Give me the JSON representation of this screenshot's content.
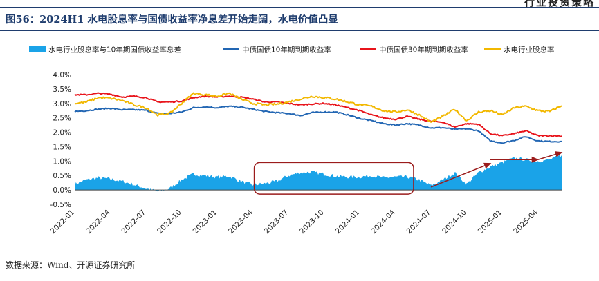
{
  "header": {
    "mark": "行业投资策略"
  },
  "figure": {
    "title": "图56：2024H1 水电股息率与国债收益率净息差开始走阔，水电价值凸显",
    "source": "数据来源：Wind、开源证券研究所"
  },
  "colors": {
    "spread": "#1aa3e8",
    "cgb10": "#2266b3",
    "cgb30": "#e8141b",
    "hydro": "#f2b800",
    "annotation": "#9b1c1c",
    "title": "#1f3d6e"
  },
  "chart_data": {
    "type": "line",
    "x_start": "2022-01",
    "x_end": "2025-06",
    "xlabels": [
      "2022-01",
      "2022-04",
      "2022-07",
      "2022-10",
      "2023-01",
      "2023-04",
      "2023-07",
      "2023-10",
      "2024-01",
      "2024-04",
      "2024-07",
      "2024-10",
      "2025-01",
      "2025-04"
    ],
    "ylabels": [
      "-0.5%",
      "0.0%",
      "0.5%",
      "1.0%",
      "1.5%",
      "2.0%",
      "2.5%",
      "3.0%",
      "3.5%",
      "4.0%"
    ],
    "ylim": [
      -0.5,
      4.0
    ],
    "grid": false,
    "legend_position": "top",
    "series": [
      {
        "name": "水电行业股息率与10年期国债收益率息差",
        "kind": "area",
        "points": [
          [
            "2022-01",
            0.2
          ],
          [
            "2022-02",
            0.35
          ],
          [
            "2022-03",
            0.42
          ],
          [
            "2022-04",
            0.38
          ],
          [
            "2022-05",
            0.3
          ],
          [
            "2022-06",
            0.18
          ],
          [
            "2022-07",
            0.05
          ],
          [
            "2022-08",
            -0.05
          ],
          [
            "2022-09",
            0.05
          ],
          [
            "2022-10",
            0.35
          ],
          [
            "2022-11",
            0.55
          ],
          [
            "2022-12",
            0.5
          ],
          [
            "2023-01",
            0.45
          ],
          [
            "2023-02",
            0.48
          ],
          [
            "2023-03",
            0.3
          ],
          [
            "2023-04",
            0.18
          ],
          [
            "2023-05",
            0.22
          ],
          [
            "2023-06",
            0.3
          ],
          [
            "2023-07",
            0.5
          ],
          [
            "2023-08",
            0.6
          ],
          [
            "2023-09",
            0.62
          ],
          [
            "2023-10",
            0.55
          ],
          [
            "2023-11",
            0.48
          ],
          [
            "2023-12",
            0.45
          ],
          [
            "2024-01",
            0.45
          ],
          [
            "2024-02",
            0.5
          ],
          [
            "2024-03",
            0.42
          ],
          [
            "2024-04",
            0.45
          ],
          [
            "2024-05",
            0.45
          ],
          [
            "2024-06",
            0.35
          ],
          [
            "2024-07",
            0.15
          ],
          [
            "2024-08",
            0.35
          ],
          [
            "2024-09",
            0.6
          ],
          [
            "2024-10",
            0.2
          ],
          [
            "2024-11",
            0.6
          ],
          [
            "2024-12",
            0.8
          ],
          [
            "2025-01",
            0.95
          ],
          [
            "2025-02",
            1.1
          ],
          [
            "2025-03",
            1.05
          ],
          [
            "2025-04",
            1.0
          ],
          [
            "2025-05",
            1.05
          ],
          [
            "2025-06",
            1.2
          ]
        ]
      },
      {
        "name": "中债国债10年期到期收益率",
        "kind": "line",
        "points": [
          [
            "2022-01",
            2.72
          ],
          [
            "2022-02",
            2.75
          ],
          [
            "2022-03",
            2.8
          ],
          [
            "2022-04",
            2.83
          ],
          [
            "2022-05",
            2.78
          ],
          [
            "2022-06",
            2.78
          ],
          [
            "2022-07",
            2.76
          ],
          [
            "2022-08",
            2.65
          ],
          [
            "2022-09",
            2.65
          ],
          [
            "2022-10",
            2.7
          ],
          [
            "2022-11",
            2.85
          ],
          [
            "2022-12",
            2.88
          ],
          [
            "2023-01",
            2.85
          ],
          [
            "2023-02",
            2.9
          ],
          [
            "2023-03",
            2.87
          ],
          [
            "2023-04",
            2.8
          ],
          [
            "2023-05",
            2.72
          ],
          [
            "2023-06",
            2.68
          ],
          [
            "2023-07",
            2.65
          ],
          [
            "2023-08",
            2.58
          ],
          [
            "2023-09",
            2.68
          ],
          [
            "2023-10",
            2.7
          ],
          [
            "2023-11",
            2.7
          ],
          [
            "2023-12",
            2.6
          ],
          [
            "2024-01",
            2.48
          ],
          [
            "2024-02",
            2.4
          ],
          [
            "2024-03",
            2.3
          ],
          [
            "2024-04",
            2.25
          ],
          [
            "2024-05",
            2.3
          ],
          [
            "2024-06",
            2.25
          ],
          [
            "2024-07",
            2.15
          ],
          [
            "2024-08",
            2.16
          ],
          [
            "2024-09",
            2.1
          ],
          [
            "2024-10",
            2.12
          ],
          [
            "2024-11",
            2.05
          ],
          [
            "2024-12",
            1.7
          ],
          [
            "2025-01",
            1.63
          ],
          [
            "2025-02",
            1.72
          ],
          [
            "2025-03",
            1.85
          ],
          [
            "2025-04",
            1.7
          ],
          [
            "2025-05",
            1.68
          ],
          [
            "2025-06",
            1.68
          ]
        ]
      },
      {
        "name": "中债国债30年期到期收益率",
        "kind": "line",
        "points": [
          [
            "2022-01",
            3.3
          ],
          [
            "2022-02",
            3.3
          ],
          [
            "2022-03",
            3.35
          ],
          [
            "2022-04",
            3.32
          ],
          [
            "2022-05",
            3.22
          ],
          [
            "2022-06",
            3.25
          ],
          [
            "2022-07",
            3.2
          ],
          [
            "2022-08",
            3.05
          ],
          [
            "2022-09",
            3.05
          ],
          [
            "2022-10",
            3.08
          ],
          [
            "2022-11",
            3.2
          ],
          [
            "2022-12",
            3.25
          ],
          [
            "2023-01",
            3.22
          ],
          [
            "2023-02",
            3.25
          ],
          [
            "2023-03",
            3.22
          ],
          [
            "2023-04",
            3.15
          ],
          [
            "2023-05",
            3.05
          ],
          [
            "2023-06",
            3.05
          ],
          [
            "2023-07",
            3.0
          ],
          [
            "2023-08",
            2.95
          ],
          [
            "2023-09",
            2.98
          ],
          [
            "2023-10",
            3.0
          ],
          [
            "2023-11",
            2.95
          ],
          [
            "2023-12",
            2.85
          ],
          [
            "2024-01",
            2.75
          ],
          [
            "2024-02",
            2.6
          ],
          [
            "2024-03",
            2.5
          ],
          [
            "2024-04",
            2.45
          ],
          [
            "2024-05",
            2.55
          ],
          [
            "2024-06",
            2.45
          ],
          [
            "2024-07",
            2.38
          ],
          [
            "2024-08",
            2.35
          ],
          [
            "2024-09",
            2.18
          ],
          [
            "2024-10",
            2.3
          ],
          [
            "2024-11",
            2.28
          ],
          [
            "2024-12",
            1.95
          ],
          [
            "2025-01",
            1.88
          ],
          [
            "2025-02",
            1.95
          ],
          [
            "2025-03",
            2.05
          ],
          [
            "2025-04",
            1.88
          ],
          [
            "2025-05",
            1.88
          ],
          [
            "2025-06",
            1.87
          ]
        ]
      },
      {
        "name": "水电行业股息率",
        "kind": "line",
        "points": [
          [
            "2022-01",
            3.0
          ],
          [
            "2022-02",
            3.05
          ],
          [
            "2022-03",
            3.2
          ],
          [
            "2022-04",
            3.18
          ],
          [
            "2022-05",
            3.1
          ],
          [
            "2022-06",
            2.95
          ],
          [
            "2022-07",
            2.85
          ],
          [
            "2022-08",
            2.6
          ],
          [
            "2022-09",
            2.65
          ],
          [
            "2022-10",
            3.0
          ],
          [
            "2022-11",
            3.35
          ],
          [
            "2022-12",
            3.3
          ],
          [
            "2023-01",
            3.25
          ],
          [
            "2023-02",
            3.35
          ],
          [
            "2023-03",
            3.15
          ],
          [
            "2023-04",
            3.0
          ],
          [
            "2023-05",
            2.95
          ],
          [
            "2023-06",
            2.97
          ],
          [
            "2023-07",
            3.05
          ],
          [
            "2023-08",
            3.15
          ],
          [
            "2023-09",
            3.25
          ],
          [
            "2023-10",
            3.2
          ],
          [
            "2023-11",
            3.15
          ],
          [
            "2023-12",
            3.05
          ],
          [
            "2024-01",
            2.95
          ],
          [
            "2024-02",
            2.9
          ],
          [
            "2024-03",
            2.75
          ],
          [
            "2024-04",
            2.7
          ],
          [
            "2024-05",
            2.78
          ],
          [
            "2024-06",
            2.6
          ],
          [
            "2024-07",
            2.35
          ],
          [
            "2024-08",
            2.55
          ],
          [
            "2024-09",
            2.8
          ],
          [
            "2024-10",
            2.4
          ],
          [
            "2024-11",
            2.7
          ],
          [
            "2024-12",
            2.75
          ],
          [
            "2025-01",
            2.6
          ],
          [
            "2025-02",
            2.85
          ],
          [
            "2025-03",
            2.9
          ],
          [
            "2025-04",
            2.75
          ],
          [
            "2025-05",
            2.72
          ],
          [
            "2025-06",
            2.92
          ]
        ]
      }
    ],
    "annotations": [
      {
        "type": "rect",
        "from": "2023-04",
        "to": "2024-06",
        "ymin": 0.0,
        "ymax": 1.0
      },
      {
        "type": "arrow",
        "from": [
          "2024-07",
          0.1
        ],
        "to": [
          "2024-12",
          0.92
        ]
      },
      {
        "type": "arrow",
        "from": [
          "2024-12",
          1.05
        ],
        "to": [
          "2025-04",
          1.05
        ]
      },
      {
        "type": "arrow",
        "from": [
          "2025-04",
          1.05
        ],
        "to": [
          "2025-06",
          1.3
        ]
      }
    ]
  }
}
